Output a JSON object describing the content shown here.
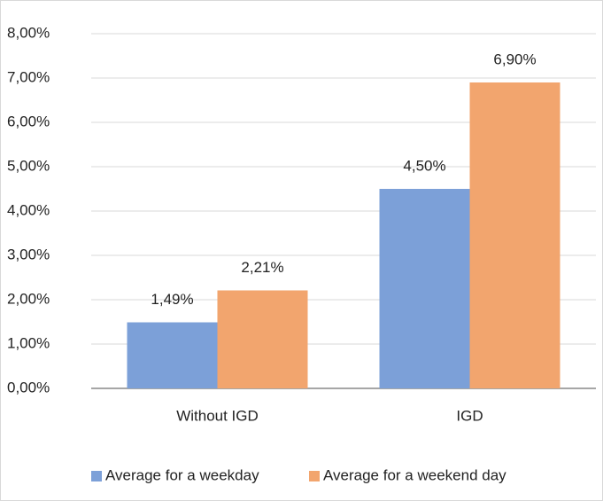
{
  "chart_data": {
    "type": "bar",
    "categories": [
      "Without IGD",
      "IGD"
    ],
    "series": [
      {
        "name": "Average for a weekday",
        "color": "#7ca0d8",
        "values": [
          1.49,
          4.5
        ],
        "value_labels": [
          "1,49%",
          "4,50%"
        ]
      },
      {
        "name": "Average for a weekend day",
        "color": "#f2a56e",
        "values": [
          2.21,
          6.9
        ],
        "value_labels": [
          "2,21%",
          "6,90%"
        ]
      }
    ],
    "ylim": [
      0,
      8
    ],
    "yticks": [
      {
        "value": 0,
        "label": "0,00%"
      },
      {
        "value": 1,
        "label": "1,00%"
      },
      {
        "value": 2,
        "label": "2,00%"
      },
      {
        "value": 3,
        "label": "3,00%"
      },
      {
        "value": 4,
        "label": "4,00%"
      },
      {
        "value": 5,
        "label": "5,00%"
      },
      {
        "value": 6,
        "label": "6,00%"
      },
      {
        "value": 7,
        "label": "7,00%"
      },
      {
        "value": 8,
        "label": "8,00%"
      }
    ],
    "grid": true,
    "legend": "bottom"
  }
}
